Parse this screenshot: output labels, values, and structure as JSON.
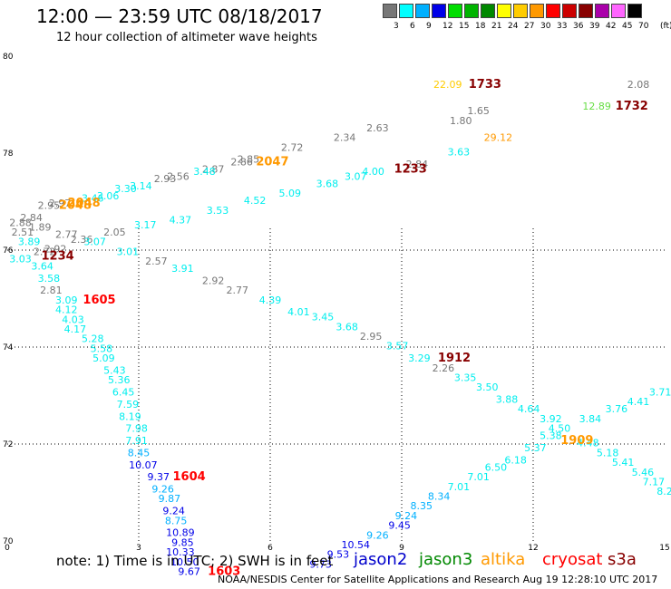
{
  "header": {
    "title": "12:00 — 23:59 UTC 08/18/2017",
    "subtitle": "12 hour collection of altimeter wave heights"
  },
  "legend": {
    "unit": "(ft)",
    "bins": [
      {
        "label": "3",
        "color": "#777777"
      },
      {
        "label": "6",
        "color": "#00ffff"
      },
      {
        "label": "9",
        "color": "#00b0ff"
      },
      {
        "label": "12",
        "color": "#0000e8"
      },
      {
        "label": "15",
        "color": "#00dd00"
      },
      {
        "label": "18",
        "color": "#00b400"
      },
      {
        "label": "21",
        "color": "#008800"
      },
      {
        "label": "24",
        "color": "#ffff00"
      },
      {
        "label": "27",
        "color": "#ffcc00"
      },
      {
        "label": "30",
        "color": "#ff9900"
      },
      {
        "label": "33",
        "color": "#ff0000"
      },
      {
        "label": "36",
        "color": "#cc0000"
      },
      {
        "label": "39",
        "color": "#880000"
      },
      {
        "label": "42",
        "color": "#aa00aa"
      },
      {
        "label": "45",
        "color": "#ff66ff"
      },
      {
        "label": "70",
        "color": "#000000"
      }
    ]
  },
  "footer": {
    "note": "note: 1) Time is in UTC; 2) SWH is in feet",
    "credit": "NOAA/NESDIS Center for Satellite Applications and Research   Aug 19 12:28:10 UTC 2017",
    "missions": [
      {
        "name": "jason2",
        "color": "#0000cc"
      },
      {
        "name": "jason3",
        "color": "#008800"
      },
      {
        "name": "altika",
        "color": "#ff9900"
      },
      {
        "name": "cryosat",
        "color": "#ff0000"
      },
      {
        "name": "s3a",
        "color": "#880000"
      }
    ]
  },
  "chart_data": {
    "type": "scatter",
    "xlabel": "",
    "ylabel": "",
    "x_ticks": [
      "0",
      "3",
      "6",
      "9",
      "12",
      "15"
    ],
    "y_ticks": [
      "70",
      "72",
      "74",
      "76",
      "78",
      "80"
    ],
    "xlim": [
      0,
      15
    ],
    "ylim": [
      70,
      80
    ],
    "grid": true,
    "grid_style": "dotted",
    "points": [
      {
        "x": 10.05,
        "y": 79.35,
        "label": "22.09",
        "color": "#ffcc00"
      },
      {
        "x": 14.4,
        "y": 79.35,
        "label": "2.08",
        "color": "#777777"
      },
      {
        "x": 13.45,
        "y": 78.9,
        "label": "12.89",
        "color": "#66dd44"
      },
      {
        "x": 10.35,
        "y": 78.6,
        "label": "1.80",
        "color": "#777777"
      },
      {
        "x": 10.75,
        "y": 78.8,
        "label": "1.65",
        "color": "#777777"
      },
      {
        "x": 8.45,
        "y": 78.45,
        "label": "2.63",
        "color": "#777777"
      },
      {
        "x": 7.7,
        "y": 78.25,
        "label": "2.34",
        "color": "#777777"
      },
      {
        "x": 11.2,
        "y": 78.25,
        "label": "29.12",
        "color": "#ff9900"
      },
      {
        "x": 6.5,
        "y": 78.05,
        "label": "2.72",
        "color": "#777777"
      },
      {
        "x": 10.3,
        "y": 77.95,
        "label": "3.63",
        "color": "#00eeee"
      },
      {
        "x": 5.5,
        "y": 77.8,
        "label": "2.85",
        "color": "#777777"
      },
      {
        "x": 5.35,
        "y": 77.75,
        "label": "2.86",
        "color": "#777777"
      },
      {
        "x": 9.35,
        "y": 77.7,
        "label": "2.84",
        "color": "#777777"
      },
      {
        "x": 4.7,
        "y": 77.6,
        "label": "2.87",
        "color": "#777777"
      },
      {
        "x": 8.35,
        "y": 77.55,
        "label": "4.00",
        "color": "#00eeee"
      },
      {
        "x": 3.9,
        "y": 77.45,
        "label": "2.56",
        "color": "#777777"
      },
      {
        "x": 4.5,
        "y": 77.55,
        "label": "3.48",
        "color": "#00eeee"
      },
      {
        "x": 7.95,
        "y": 77.45,
        "label": "3.07",
        "color": "#00eeee"
      },
      {
        "x": 3.6,
        "y": 77.4,
        "label": "2.93",
        "color": "#777777"
      },
      {
        "x": 7.3,
        "y": 77.3,
        "label": "3.68",
        "color": "#00eeee"
      },
      {
        "x": 3.05,
        "y": 77.25,
        "label": "3.14",
        "color": "#00eeee"
      },
      {
        "x": 2.7,
        "y": 77.2,
        "label": "3.30",
        "color": "#00eeee"
      },
      {
        "x": 6.45,
        "y": 77.1,
        "label": "5.09",
        "color": "#00eeee"
      },
      {
        "x": 2.3,
        "y": 77.05,
        "label": "3.06",
        "color": "#00eeee"
      },
      {
        "x": 1.95,
        "y": 77.0,
        "label": "3.46",
        "color": "#00eeee"
      },
      {
        "x": 5.65,
        "y": 76.95,
        "label": "4.52",
        "color": "#00eeee"
      },
      {
        "x": 1.2,
        "y": 76.9,
        "label": "2.97",
        "color": "#777777"
      },
      {
        "x": 0.95,
        "y": 76.85,
        "label": "2.95",
        "color": "#777777"
      },
      {
        "x": 4.8,
        "y": 76.75,
        "label": "3.53",
        "color": "#00eeee"
      },
      {
        "x": 0.55,
        "y": 76.6,
        "label": "2.84",
        "color": "#777777"
      },
      {
        "x": 3.95,
        "y": 76.55,
        "label": "4.37",
        "color": "#00eeee"
      },
      {
        "x": 0.3,
        "y": 76.5,
        "label": "2.88",
        "color": "#777777"
      },
      {
        "x": 3.15,
        "y": 76.45,
        "label": "3.17",
        "color": "#00eeee"
      },
      {
        "x": 0.75,
        "y": 76.4,
        "label": "1.89",
        "color": "#777777"
      },
      {
        "x": 0.35,
        "y": 76.3,
        "label": "2.51",
        "color": "#777777"
      },
      {
        "x": 1.35,
        "y": 76.25,
        "label": "2.77",
        "color": "#777777"
      },
      {
        "x": 2.45,
        "y": 76.3,
        "label": "2.05",
        "color": "#777777"
      },
      {
        "x": 0.5,
        "y": 76.1,
        "label": "3.89",
        "color": "#00eeee"
      },
      {
        "x": 1.7,
        "y": 76.15,
        "label": "2.36",
        "color": "#777777"
      },
      {
        "x": 2.0,
        "y": 76.1,
        "label": "3.07",
        "color": "#00eeee"
      },
      {
        "x": 1.1,
        "y": 75.95,
        "label": "2.92",
        "color": "#777777"
      },
      {
        "x": 0.85,
        "y": 75.9,
        "label": "2.72",
        "color": "#777777"
      },
      {
        "x": 2.75,
        "y": 75.9,
        "label": "3.01",
        "color": "#00eeee"
      },
      {
        "x": 0.3,
        "y": 75.75,
        "label": "3.03",
        "color": "#00eeee"
      },
      {
        "x": 3.4,
        "y": 75.7,
        "label": "2.57",
        "color": "#777777"
      },
      {
        "x": 0.8,
        "y": 75.6,
        "label": "3.64",
        "color": "#00eeee"
      },
      {
        "x": 4.0,
        "y": 75.55,
        "label": "3.91",
        "color": "#00eeee"
      },
      {
        "x": 0.95,
        "y": 75.35,
        "label": "3.58",
        "color": "#00eeee"
      },
      {
        "x": 4.7,
        "y": 75.3,
        "label": "2.92",
        "color": "#777777"
      },
      {
        "x": 1.0,
        "y": 75.1,
        "label": "2.81",
        "color": "#777777"
      },
      {
        "x": 5.25,
        "y": 75.1,
        "label": "2.77",
        "color": "#777777"
      },
      {
        "x": 1.35,
        "y": 74.9,
        "label": "3.09",
        "color": "#00eeee"
      },
      {
        "x": 6.0,
        "y": 74.9,
        "label": "4.39",
        "color": "#00eeee"
      },
      {
        "x": 1.35,
        "y": 74.7,
        "label": "4.12",
        "color": "#00eeee"
      },
      {
        "x": 6.65,
        "y": 74.65,
        "label": "4.01",
        "color": "#00eeee"
      },
      {
        "x": 1.5,
        "y": 74.5,
        "label": "4.03",
        "color": "#00eeee"
      },
      {
        "x": 7.2,
        "y": 74.55,
        "label": "3.45",
        "color": "#00eeee"
      },
      {
        "x": 1.55,
        "y": 74.3,
        "label": "4.17",
        "color": "#00eeee"
      },
      {
        "x": 7.75,
        "y": 74.35,
        "label": "3.68",
        "color": "#00eeee"
      },
      {
        "x": 1.95,
        "y": 74.1,
        "label": "5.28",
        "color": "#00eeee"
      },
      {
        "x": 8.3,
        "y": 74.15,
        "label": "2.95",
        "color": "#777777"
      },
      {
        "x": 2.15,
        "y": 73.9,
        "label": "5.58",
        "color": "#00eeee"
      },
      {
        "x": 8.9,
        "y": 73.95,
        "label": "3.57",
        "color": "#00eeee"
      },
      {
        "x": 2.2,
        "y": 73.7,
        "label": "5.09",
        "color": "#00eeee"
      },
      {
        "x": 9.4,
        "y": 73.7,
        "label": "3.29",
        "color": "#00eeee"
      },
      {
        "x": 9.95,
        "y": 73.5,
        "label": "2.26",
        "color": "#777777"
      },
      {
        "x": 2.45,
        "y": 73.45,
        "label": "5.43",
        "color": "#00eeee"
      },
      {
        "x": 10.45,
        "y": 73.3,
        "label": "3.35",
        "color": "#00eeee"
      },
      {
        "x": 2.55,
        "y": 73.25,
        "label": "5.36",
        "color": "#00eeee"
      },
      {
        "x": 10.95,
        "y": 73.1,
        "label": "3.50",
        "color": "#00eeee"
      },
      {
        "x": 2.65,
        "y": 73.0,
        "label": "6.45",
        "color": "#00eeee"
      },
      {
        "x": 11.4,
        "y": 72.85,
        "label": "3.88",
        "color": "#00eeee"
      },
      {
        "x": 2.75,
        "y": 72.75,
        "label": "7.59",
        "color": "#00eeee"
      },
      {
        "x": 11.9,
        "y": 72.65,
        "label": "4.64",
        "color": "#00eeee"
      },
      {
        "x": 12.4,
        "y": 72.45,
        "label": "3.92",
        "color": "#00eeee"
      },
      {
        "x": 2.8,
        "y": 72.5,
        "label": "8.19",
        "color": "#00eeee"
      },
      {
        "x": 12.6,
        "y": 72.25,
        "label": "4.50",
        "color": "#00eeee"
      },
      {
        "x": 13.3,
        "y": 72.45,
        "label": "3.84",
        "color": "#00eeee"
      },
      {
        "x": 13.9,
        "y": 72.65,
        "label": "3.76",
        "color": "#00eeee"
      },
      {
        "x": 14.4,
        "y": 72.8,
        "label": "4.41",
        "color": "#00eeee"
      },
      {
        "x": 14.9,
        "y": 73.0,
        "label": "3.71",
        "color": "#00eeee"
      },
      {
        "x": 2.95,
        "y": 72.25,
        "label": "7.98",
        "color": "#00eeee"
      },
      {
        "x": 12.4,
        "y": 72.1,
        "label": "5.38",
        "color": "#00eeee"
      },
      {
        "x": 13.25,
        "y": 71.95,
        "label": "4.48",
        "color": "#00eeee"
      },
      {
        "x": 13.7,
        "y": 71.75,
        "label": "5.18",
        "color": "#00eeee"
      },
      {
        "x": 14.05,
        "y": 71.55,
        "label": "5.41",
        "color": "#00eeee"
      },
      {
        "x": 14.5,
        "y": 71.35,
        "label": "5.46",
        "color": "#00eeee"
      },
      {
        "x": 14.75,
        "y": 71.15,
        "label": "7.17",
        "color": "#00eeee"
      },
      {
        "x": 15.0,
        "y": 70.95,
        "label": "8.2",
        "color": "#00eeee"
      },
      {
        "x": 12.05,
        "y": 71.85,
        "label": "5.37",
        "color": "#00eeee"
      },
      {
        "x": 11.6,
        "y": 71.6,
        "label": "6.18",
        "color": "#00eeee"
      },
      {
        "x": 11.15,
        "y": 71.45,
        "label": "6.50",
        "color": "#00eeee"
      },
      {
        "x": 2.95,
        "y": 72.0,
        "label": "7.91",
        "color": "#00eeee"
      },
      {
        "x": 10.75,
        "y": 71.25,
        "label": "7.01",
        "color": "#00eeee"
      },
      {
        "x": 10.3,
        "y": 71.05,
        "label": "7.01",
        "color": "#00eeee"
      },
      {
        "x": 3.0,
        "y": 71.75,
        "label": "8.45",
        "color": "#00b0ff"
      },
      {
        "x": 9.85,
        "y": 70.85,
        "label": "8.34",
        "color": "#00b0ff"
      },
      {
        "x": 3.1,
        "y": 71.5,
        "label": "10.07",
        "color": "#0000e8"
      },
      {
        "x": 9.45,
        "y": 70.65,
        "label": "8.35",
        "color": "#00b0ff"
      },
      {
        "x": 3.45,
        "y": 71.25,
        "label": "9.37",
        "color": "#0000e8"
      },
      {
        "x": 9.1,
        "y": 70.45,
        "label": "9.24",
        "color": "#00b0ff"
      },
      {
        "x": 3.55,
        "y": 71.0,
        "label": "9.26",
        "color": "#00b0ff"
      },
      {
        "x": 8.95,
        "y": 70.25,
        "label": "9.45",
        "color": "#0000e8"
      },
      {
        "x": 3.7,
        "y": 70.8,
        "label": "9.87",
        "color": "#00b0ff"
      },
      {
        "x": 8.45,
        "y": 70.05,
        "label": "9.26",
        "color": "#00b0ff"
      },
      {
        "x": 3.8,
        "y": 70.55,
        "label": "9.24",
        "color": "#0000e8"
      },
      {
        "x": 7.95,
        "y": 69.85,
        "label": "10.54",
        "color": "#0000e8"
      },
      {
        "x": 3.85,
        "y": 70.35,
        "label": "8.75",
        "color": "#00b0ff"
      },
      {
        "x": 7.55,
        "y": 69.65,
        "label": "9.53",
        "color": "#0000e8"
      },
      {
        "x": 3.95,
        "y": 70.1,
        "label": "10.89",
        "color": "#0000e8"
      },
      {
        "x": 7.15,
        "y": 69.45,
        "label": "9.73",
        "color": "#0000e8"
      },
      {
        "x": 4.0,
        "y": 69.9,
        "label": "9.85",
        "color": "#0000e8"
      },
      {
        "x": 3.95,
        "y": 69.7,
        "label": "10.33",
        "color": "#0000e8"
      },
      {
        "x": 4.05,
        "y": 69.5,
        "label": "10.50",
        "color": "#0000e8"
      },
      {
        "x": 4.15,
        "y": 69.3,
        "label": "9.67",
        "color": "#0000e8"
      }
    ],
    "passes": [
      {
        "x": 10.9,
        "y": 79.35,
        "label": "1733",
        "color": "#880000"
      },
      {
        "x": 14.25,
        "y": 78.9,
        "label": "1732",
        "color": "#880000"
      },
      {
        "x": 9.2,
        "y": 77.6,
        "label": "1233",
        "color": "#880000"
      },
      {
        "x": 6.05,
        "y": 77.75,
        "label": "2047",
        "color": "#ff9900"
      },
      {
        "x": 1.75,
        "y": 76.9,
        "label": "2048",
        "color": "#ff9900"
      },
      {
        "x": 1.55,
        "y": 76.85,
        "label": "2048",
        "color": "#ff9900"
      },
      {
        "x": 1.15,
        "y": 75.8,
        "label": "1234",
        "color": "#880000"
      },
      {
        "x": 2.1,
        "y": 74.9,
        "label": "1605",
        "color": "#ff0000"
      },
      {
        "x": 10.2,
        "y": 73.7,
        "label": "1912",
        "color": "#880000"
      },
      {
        "x": 13.0,
        "y": 72.0,
        "label": "1909",
        "color": "#ff9900"
      },
      {
        "x": 4.15,
        "y": 71.25,
        "label": "1604",
        "color": "#ff0000"
      },
      {
        "x": 4.95,
        "y": 69.3,
        "label": "1603",
        "color": "#ff0000"
      }
    ]
  }
}
